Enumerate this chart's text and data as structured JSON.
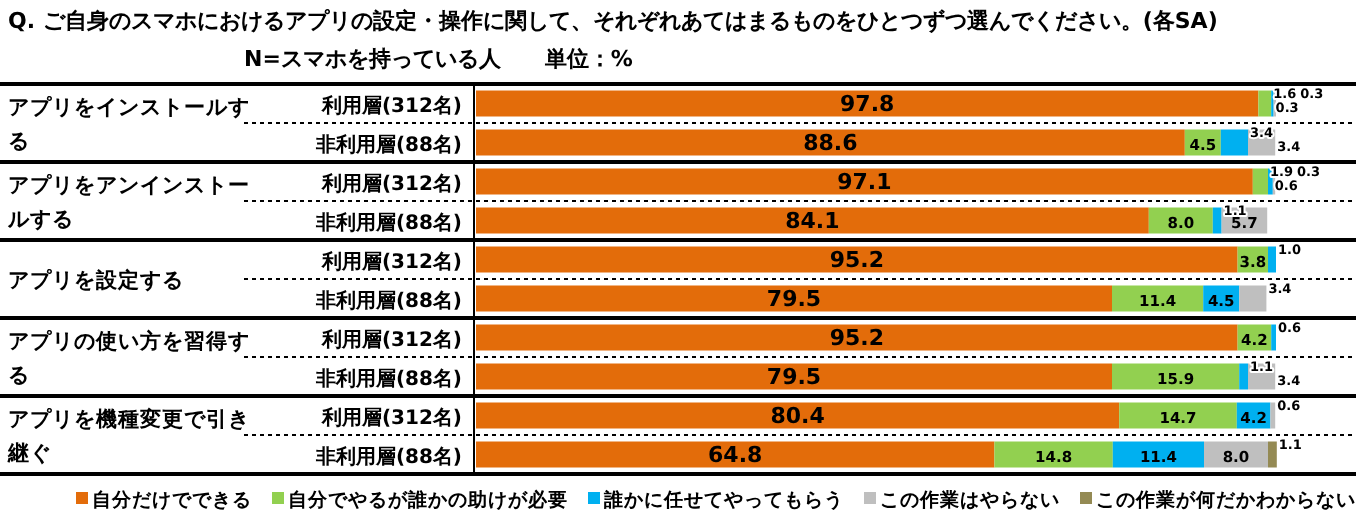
{
  "chart_data": {
    "type": "bar",
    "orientation": "horizontal",
    "stacked": true,
    "title": "Q. ご自身のスマホにおけるアプリの設定・操作に関して、それぞれあてはまるものをひとつずつ選んでください。(各SA)",
    "subtitle": "N=スマホを持っている人　　単位：%",
    "categories": [
      "利用層(312名)",
      "非利用層(88名)",
      "利用層(312名)",
      "非利用層(88名)",
      "利用層(312名)",
      "非利用層(88名)",
      "利用層(312名)",
      "非利用層(88名)",
      "利用層(312名)",
      "非利用層(88名)"
    ],
    "annotations": [
      "アプリをインストールする",
      "アプリをアンインストールする",
      "アプリを設定する",
      "アプリの使い方を習得する",
      "アプリを機種変更で引き継ぐ"
    ],
    "xlim": [
      0,
      100
    ],
    "legend": "bottom",
    "series": [
      {
        "name": "自分だけでできる",
        "color": "#e36c0a",
        "values": [
          97.8,
          88.6,
          97.1,
          84.1,
          95.2,
          79.5,
          95.2,
          79.5,
          80.4,
          64.8
        ],
        "value_labels": [
          "97.8",
          "88.6",
          "97.1",
          "84.1",
          "95.2",
          "79.5",
          "95.2",
          "79.5",
          "80.4",
          "64.8"
        ]
      },
      {
        "name": "自分でやるが誰かの助けが必要",
        "color": "#92d050",
        "values": [
          1.6,
          4.5,
          1.9,
          8.0,
          3.8,
          11.4,
          4.2,
          15.9,
          14.7,
          14.8
        ],
        "value_labels": [
          "1.6",
          "4.5",
          "1.9",
          "8.0",
          "3.8",
          "11.4",
          "4.2",
          "15.9",
          "14.7",
          "14.8"
        ]
      },
      {
        "name": "誰かに任せてやってもらう",
        "color": "#00b0f0",
        "values": [
          0.3,
          3.4,
          0.6,
          1.1,
          1.0,
          4.5,
          0.6,
          1.1,
          4.2,
          11.4
        ],
        "value_labels": [
          "0.3",
          "3.4",
          "0.6",
          "1.1",
          "1.0",
          "4.5",
          "0.6",
          "1.1",
          "4.2",
          "11.4"
        ]
      },
      {
        "name": "この作業はやらない",
        "color": "#bfbfbf",
        "values": [
          0.3,
          3.4,
          0.3,
          5.7,
          null,
          3.4,
          null,
          3.4,
          0.6,
          8.0
        ],
        "value_labels": [
          "0.3",
          "3.4",
          "0.3",
          "5.7",
          null,
          "3.4",
          null,
          "3.4",
          "0.6",
          "8.0"
        ]
      },
      {
        "name": "この作業が何だかわからない",
        "color": "#948a54",
        "values": [
          null,
          null,
          null,
          null,
          null,
          null,
          null,
          null,
          null,
          1.1
        ],
        "value_labels": [
          null,
          null,
          null,
          null,
          null,
          null,
          null,
          null,
          null,
          "1.1"
        ]
      }
    ]
  }
}
